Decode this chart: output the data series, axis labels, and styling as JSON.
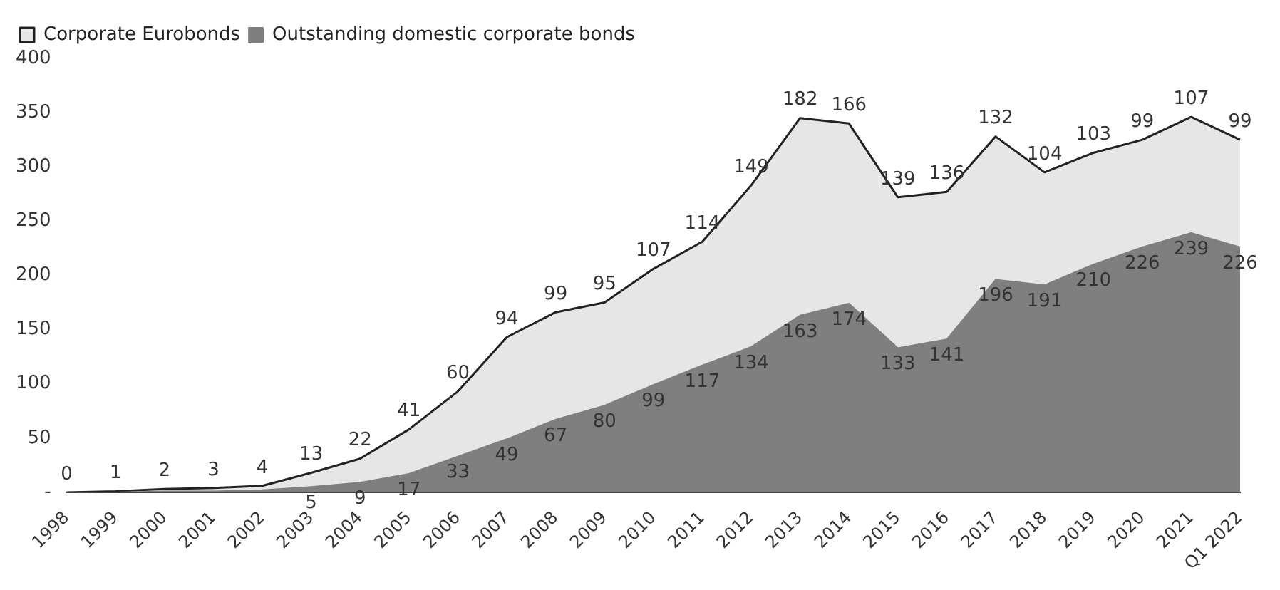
{
  "chart_data": {
    "type": "area",
    "stacked": true,
    "categories": [
      "1998",
      "1999",
      "2000",
      "2001",
      "2002",
      "2003",
      "2004",
      "2005",
      "2006",
      "2007",
      "2008",
      "2009",
      "2010",
      "2011",
      "2012",
      "2013",
      "2014",
      "2015",
      "2016",
      "2017",
      "2018",
      "2019",
      "2020",
      "2021",
      "Q1 2022"
    ],
    "series": [
      {
        "name": "Outstanding domestic corporate bonds",
        "color": "#7f7f7f",
        "values": [
          0,
          0,
          1,
          1,
          2,
          5,
          9,
          17,
          33,
          49,
          67,
          80,
          99,
          117,
          134,
          163,
          174,
          133,
          141,
          196,
          191,
          210,
          226,
          239,
          226
        ],
        "value_labels": [
          null,
          null,
          null,
          null,
          null,
          "5",
          "9",
          "17",
          "33",
          "49",
          "67",
          "80",
          "99",
          "117",
          "134",
          "163",
          "174",
          "133",
          "141",
          "196",
          "191",
          "210",
          "226",
          "239",
          "226"
        ]
      },
      {
        "name": "Corporate Eurobonds",
        "color": "#e6e6e6",
        "values": [
          0,
          1,
          2,
          3,
          4,
          13,
          22,
          41,
          60,
          94,
          99,
          95,
          107,
          114,
          149,
          182,
          166,
          139,
          136,
          132,
          104,
          103,
          99,
          107,
          99
        ],
        "value_labels": [
          "0",
          "1",
          "2",
          "3",
          "4",
          "13",
          "22",
          "41",
          "60",
          "94",
          "99",
          "95",
          "107",
          "114",
          "149",
          "182",
          "166",
          "139",
          "136",
          "132",
          "104",
          "103",
          "99",
          "107",
          "99"
        ]
      }
    ],
    "ylim": [
      0,
      400
    ],
    "yticks": [
      {
        "value": 0,
        "label": "-"
      },
      50,
      100,
      150,
      200,
      250,
      300,
      350,
      400
    ],
    "grid": false,
    "legend": "top left"
  }
}
